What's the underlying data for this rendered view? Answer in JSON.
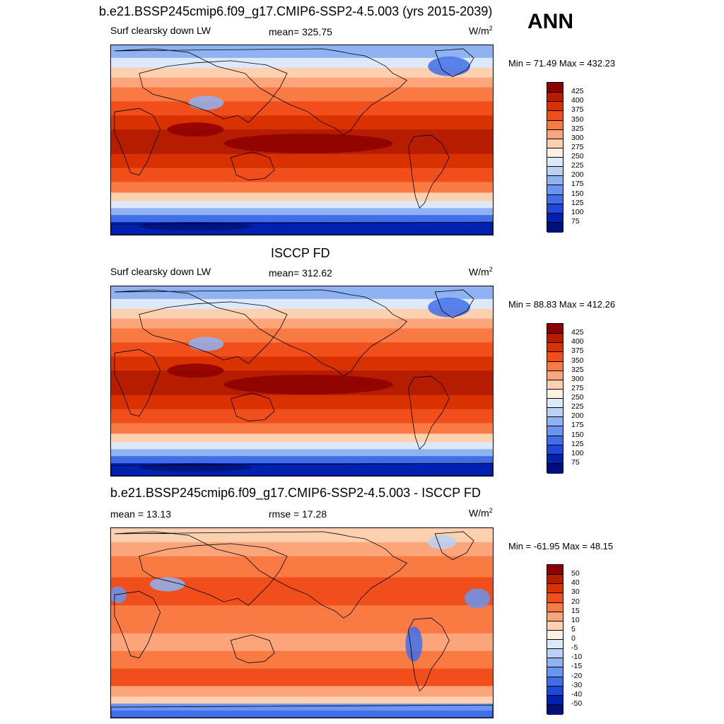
{
  "season": "ANN",
  "panels": [
    {
      "title": "b.e21.BSSP245cmip6.f09_g17.CMIP6-SSP2-4.5.003 (yrs 2015-2039)",
      "variable": "Surf clearsky down LW",
      "stat_label": "mean= 325.75",
      "units": "W/m",
      "units_exp": "2",
      "minmax": "Min =  71.49 Max = 432.23",
      "colorbar_labels": [
        "425",
        "400",
        "375",
        "350",
        "325",
        "300",
        "275",
        "250",
        "225",
        "200",
        "175",
        "150",
        "125",
        "100",
        "75"
      ],
      "colorbar_colors": [
        "#8b0000",
        "#b51c00",
        "#d93200",
        "#f04f1c",
        "#fa7a44",
        "#fca57a",
        "#fdd0b0",
        "#fff0e0",
        "#dde9fa",
        "#b9d0f7",
        "#8fb3f2",
        "#6994ef",
        "#3f6ee8",
        "#1f47d8",
        "#0021b0",
        "#00107a"
      ],
      "map_theme": "pos"
    },
    {
      "title": "ISCCP FD",
      "variable": "Surf clearsky down LW",
      "stat_label": "mean= 312.62",
      "units": "W/m",
      "units_exp": "2",
      "minmax": "Min =  88.83 Max = 412.26",
      "colorbar_labels": [
        "425",
        "400",
        "375",
        "350",
        "325",
        "300",
        "275",
        "250",
        "225",
        "200",
        "175",
        "150",
        "125",
        "100",
        "75"
      ],
      "colorbar_colors": [
        "#8b0000",
        "#b51c00",
        "#d93200",
        "#f04f1c",
        "#fa7a44",
        "#fca57a",
        "#fdd0b0",
        "#fff0e0",
        "#dde9fa",
        "#b9d0f7",
        "#8fb3f2",
        "#6994ef",
        "#3f6ee8",
        "#1f47d8",
        "#0021b0",
        "#00107a"
      ],
      "map_theme": "pos"
    },
    {
      "title": "b.e21.BSSP245cmip6.f09_g17.CMIP6-SSP2-4.5.003 - ISCCP FD",
      "variable": "mean =  13.13",
      "stat_label": "rmse =  17.28",
      "units": "W/m",
      "units_exp": "2",
      "minmax": "Min = -61.95 Max =  48.15",
      "colorbar_labels": [
        "50",
        "40",
        "30",
        "20",
        "15",
        "10",
        "5",
        "0",
        "-5",
        "-10",
        "-15",
        "-20",
        "-30",
        "-40",
        "-50"
      ],
      "colorbar_colors": [
        "#8b0000",
        "#b51c00",
        "#d93200",
        "#f04f1c",
        "#fa7a44",
        "#fca57a",
        "#fdd0b0",
        "#fff0e0",
        "#dde9fa",
        "#b9d0f7",
        "#8fb3f2",
        "#6994ef",
        "#3f6ee8",
        "#1f47d8",
        "#0021b0",
        "#00107a"
      ],
      "map_theme": "diff"
    }
  ]
}
